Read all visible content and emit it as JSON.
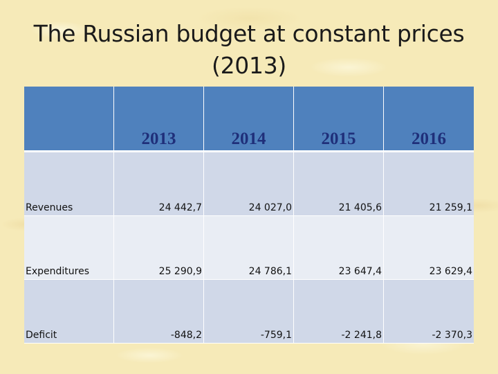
{
  "title": {
    "line1": "The Russian budget at constant prices",
    "line2": "(2013)"
  },
  "table": {
    "header_first": "",
    "years": [
      "2013",
      "2014",
      "2015",
      "2016"
    ],
    "rows": [
      {
        "label": "Revenues",
        "values": [
          "24 442,7",
          "24 027,0",
          "21 405,6",
          "21 259,1"
        ]
      },
      {
        "label": "Expenditures",
        "values": [
          "25 290,9",
          "24 786,1",
          "23 647,4",
          "23 629,4"
        ]
      },
      {
        "label": "Deficit",
        "values": [
          "-848,2",
          "-759,1",
          "-2 241,8",
          "-2 370,3"
        ]
      }
    ]
  },
  "colors": {
    "header_fill": "#4f81bd",
    "header_text": "#1f2f7a",
    "row_fill_a": "#d0d8e8",
    "row_fill_b": "#e9edf4",
    "background": "#f6eab8"
  }
}
